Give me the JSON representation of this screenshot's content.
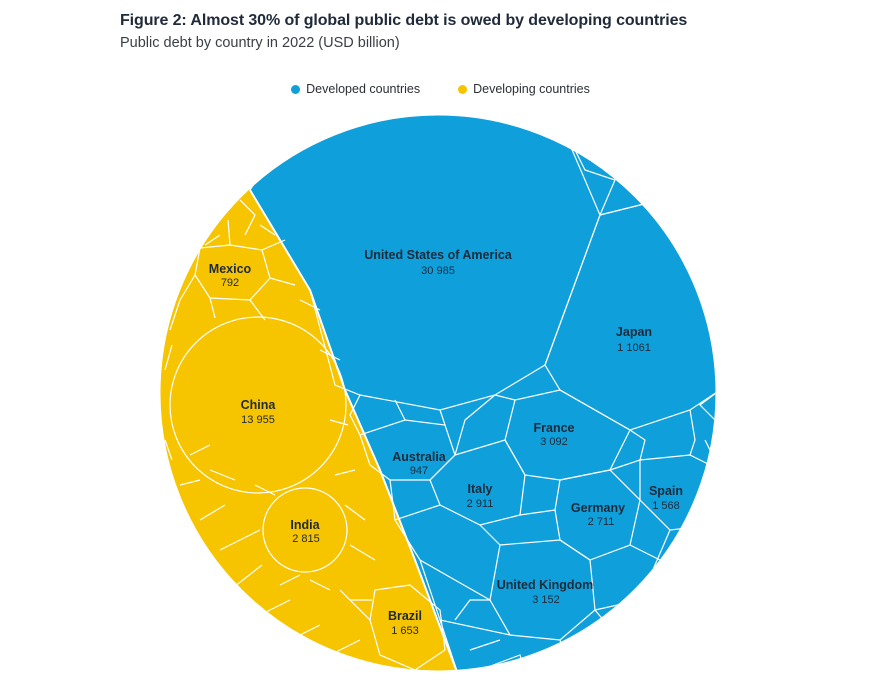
{
  "title": "Figure 2: Almost 30% of global public debt is owed by developing countries",
  "subtitle": "Public debt by country in 2022 (USD billion)",
  "legend": [
    {
      "label": "Developed countries",
      "color": "#0f9fdb"
    },
    {
      "label": "Developing countries",
      "color": "#f7c400"
    }
  ],
  "chart_data": {
    "type": "voronoi-treemap",
    "groups": [
      {
        "name": "Developed countries",
        "color": "#0f9fdb"
      },
      {
        "name": "Developing countries",
        "color": "#f7c400"
      }
    ],
    "labels": [
      {
        "country": "United States of America",
        "value": "30 985",
        "group": "Developed countries"
      },
      {
        "country": "Japan",
        "value": "1 1061",
        "group": "Developed countries"
      },
      {
        "country": "France",
        "value": "3 092",
        "group": "Developed countries"
      },
      {
        "country": "Australia",
        "value": "947",
        "group": "Developed countries"
      },
      {
        "country": "Italy",
        "value": "2 911",
        "group": "Developed countries"
      },
      {
        "country": "Germany",
        "value": "2 711",
        "group": "Developed countries"
      },
      {
        "country": "Spain",
        "value": "1 568",
        "group": "Developed countries"
      },
      {
        "country": "United Kingdom",
        "value": "3 152",
        "group": "Developed countries"
      },
      {
        "country": "Mexico",
        "value": "792",
        "group": "Developing countries"
      },
      {
        "country": "China",
        "value": "13 955",
        "group": "Developing countries"
      },
      {
        "country": "India",
        "value": "2 815",
        "group": "Developing countries"
      },
      {
        "country": "Brazil",
        "value": "1 653",
        "group": "Developing countries"
      }
    ]
  }
}
